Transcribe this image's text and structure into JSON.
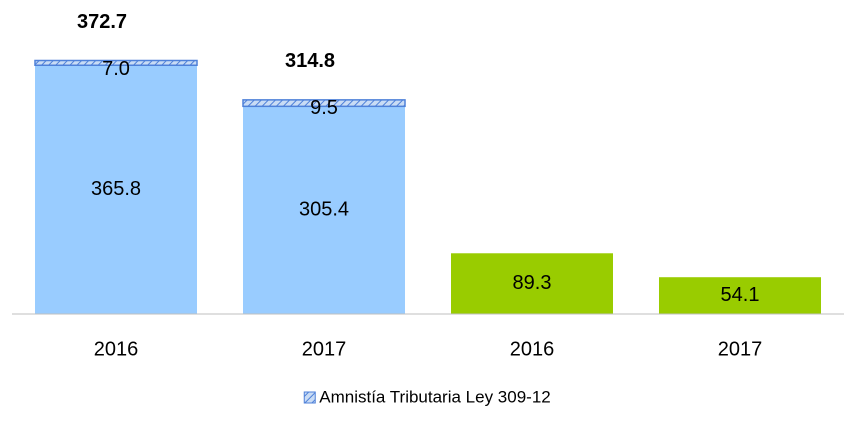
{
  "chart_data": {
    "type": "stacked_bar",
    "categories": [
      "2016",
      "2017",
      "2016",
      "2017"
    ],
    "series": [
      {
        "colors": [
          "#99ccff",
          "#99ccff",
          "#99cc00",
          "#99cc00"
        ],
        "values": [
          365.8,
          305.4,
          89.3,
          54.1
        ]
      },
      {
        "name": "Amnistía Tributaria Ley 309-12",
        "color": "#4f81d9",
        "hatch": true,
        "values": [
          7.0,
          9.5,
          null,
          null
        ],
        "value_labels": [
          "7.0",
          "9.5",
          null,
          null
        ]
      }
    ],
    "totals": [
      372.7,
      314.8,
      null,
      null
    ],
    "ylim": [
      0,
      400
    ],
    "grid": false,
    "legend": "bottom"
  }
}
